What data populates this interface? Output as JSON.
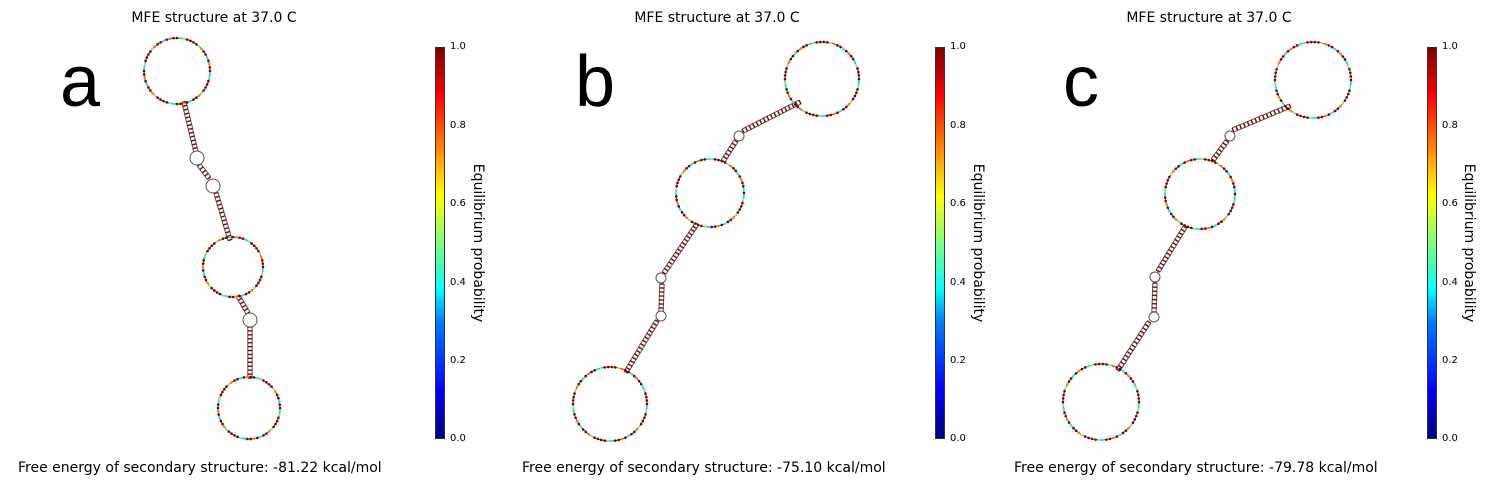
{
  "panels": [
    {
      "letter": "a",
      "title": "MFE structure at 37.0 C",
      "energy_text": "Free energy of secondary structure: -81.22 kcal/mol",
      "colorbar": {
        "label": "Equilibrium probability",
        "ticks": [
          "1.0",
          "0.8",
          "0.6",
          "0.4",
          "0.2",
          "0.0"
        ]
      }
    },
    {
      "letter": "b",
      "title": "MFE structure at 37.0 C",
      "energy_text": "Free energy of secondary structure: -75.10 kcal/mol",
      "colorbar": {
        "label": "Equilibrium probability",
        "ticks": [
          "1.0",
          "0.8",
          "0.6",
          "0.4",
          "0.2",
          "0.0"
        ]
      }
    },
    {
      "letter": "c",
      "title": "MFE structure at 37.0 C",
      "energy_text": "Free energy of secondary structure: -79.78 kcal/mol",
      "colorbar": {
        "label": "Equilibrium probability",
        "ticks": [
          "1.0",
          "0.8",
          "0.6",
          "0.4",
          "0.2",
          "0.0"
        ]
      }
    }
  ],
  "colors": {
    "pair_high": "#7f0000",
    "unpaired_mix": [
      "#7f0000",
      "#ff7f00",
      "#7fff7f",
      "#00ffff"
    ]
  }
}
